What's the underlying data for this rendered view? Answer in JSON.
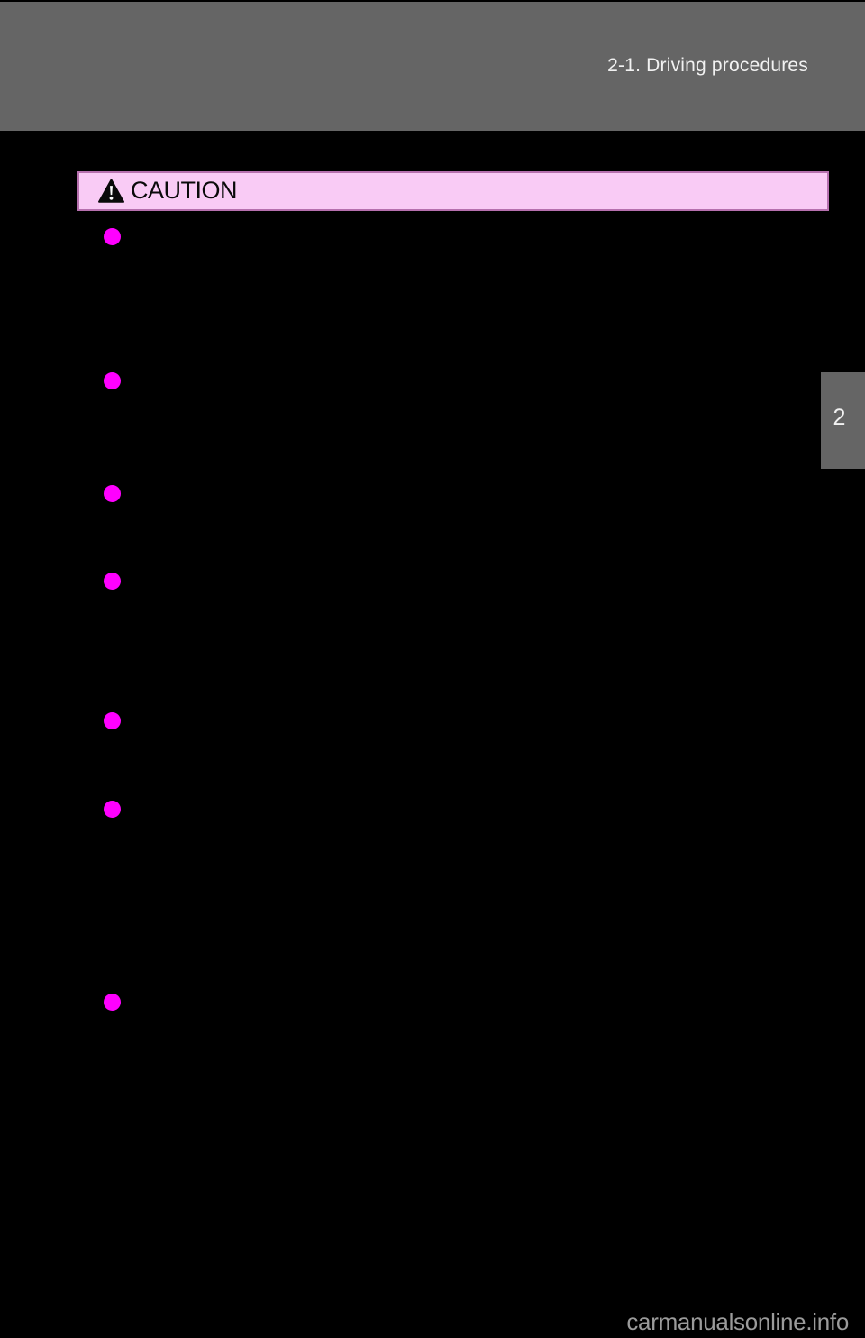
{
  "header": {
    "title": "2-1. Driving procedures"
  },
  "caution": {
    "label": "CAUTION",
    "icon": "warning-triangle-icon"
  },
  "bullets": {
    "count": 7,
    "marker": "magenta-dot",
    "marker_color": "#ff00ff"
  },
  "chapter_tab": {
    "number": "2"
  },
  "footer": {
    "watermark": "carmanualsonline.info"
  },
  "colors": {
    "page_bg": "#000000",
    "header_bg": "#656565",
    "header_text": "#f2f2f2",
    "caution_bg": "#f9cbf5",
    "caution_border": "#b670ae",
    "caution_text": "#0a0a0a",
    "bullet": "#ff00ff",
    "watermark_text": "#9b9b9b"
  }
}
